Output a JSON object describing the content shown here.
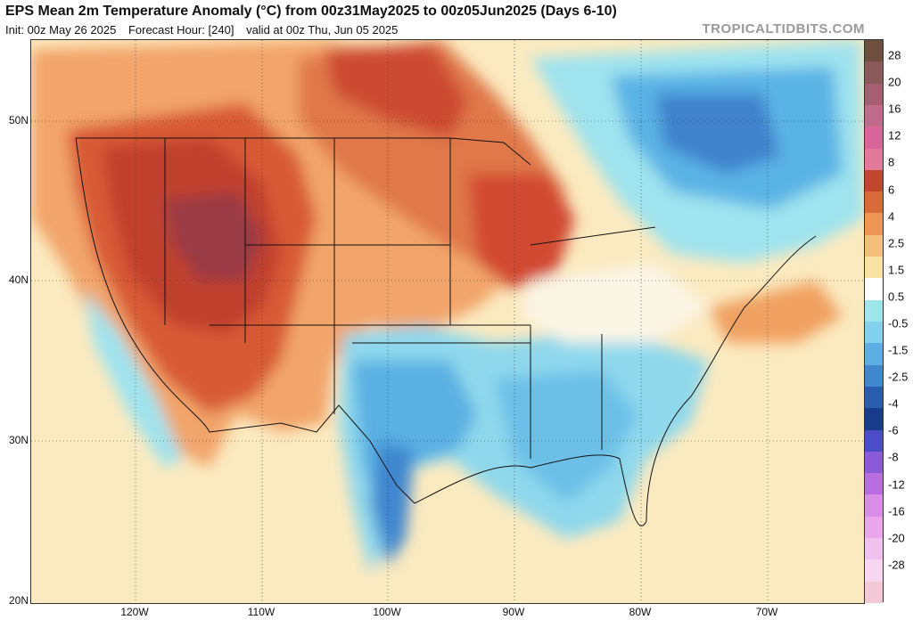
{
  "header": {
    "title": "EPS Mean 2m Temperature Anomaly (°C) from 00z31May2025 to 00z05Jun2025 (Days 6-10)",
    "init": "Init: 00z May 26 2025",
    "forecast_hour": "Forecast Hour: [240]",
    "valid": "valid at 00z Thu, Jun 05 2025",
    "watermark": "TROPICALTIDBITS.COM"
  },
  "axes": {
    "lat_labels": [
      "50N",
      "40N",
      "30N",
      "20N"
    ],
    "lon_labels": [
      "120W",
      "110W",
      "100W",
      "90W",
      "80W",
      "70W"
    ]
  },
  "colorbar": {
    "labels": [
      "28",
      "20",
      "16",
      "12",
      "8",
      "6",
      "4",
      "2.5",
      "1.5",
      "0.5",
      "-0.5",
      "-1.5",
      "-2.5",
      "-4",
      "-6",
      "-8",
      "-12",
      "-16",
      "-20",
      "-28"
    ],
    "colors": [
      "#6e4f3f",
      "#8a5a5a",
      "#a65f72",
      "#c06a8c",
      "#d9649a",
      "#e2789a",
      "#c2452e",
      "#d86a3c",
      "#ee9656",
      "#f4bf78",
      "#f8e2a6",
      "#ffffff",
      "#9fe6ea",
      "#7fd2ec",
      "#5ab0e3",
      "#3f87cf",
      "#2a5cb0",
      "#183b8c",
      "#4a4cc8",
      "#8a5ad8",
      "#b86ee0",
      "#d98ee6",
      "#eaa6ea",
      "#f2c2ef",
      "#f7d6f2",
      "#f5c8d6"
    ]
  }
}
